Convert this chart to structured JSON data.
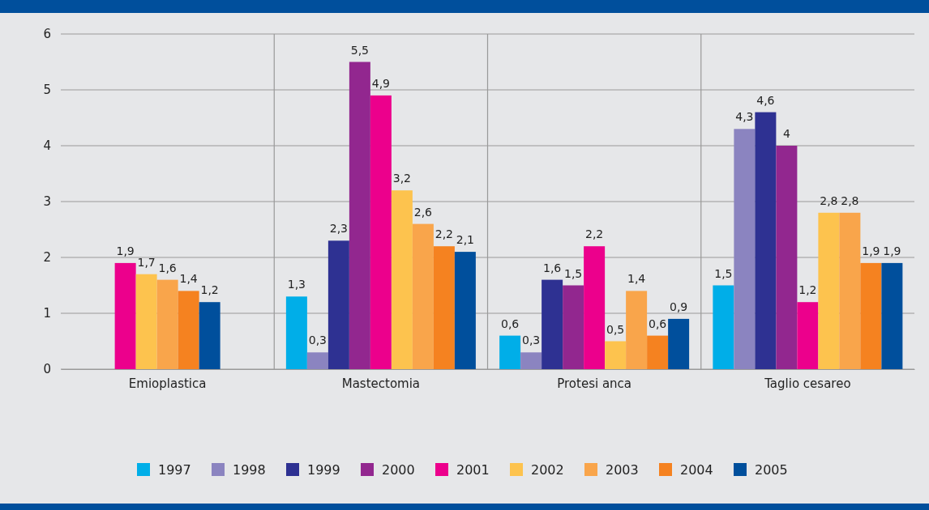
{
  "chart_data": {
    "type": "bar",
    "categories": [
      "Emioplastica",
      "Mastectomia",
      "Protesi anca",
      "Taglio cesareo"
    ],
    "series": [
      {
        "name": "1997",
        "color": "#00aee8",
        "values": [
          null,
          1.3,
          0.6,
          1.5
        ],
        "value_labels": [
          null,
          "1,3",
          "0,6",
          "1,5"
        ]
      },
      {
        "name": "1998",
        "color": "#8b84c0",
        "values": [
          null,
          0.3,
          0.3,
          4.3
        ],
        "value_labels": [
          null,
          "0,3",
          "0,3",
          "4,3"
        ]
      },
      {
        "name": "1999",
        "color": "#2e3192",
        "values": [
          null,
          2.3,
          1.6,
          4.6
        ],
        "value_labels": [
          null,
          "2,3",
          "1,6",
          "4,6"
        ]
      },
      {
        "name": "2000",
        "color": "#92278f",
        "values": [
          null,
          5.5,
          1.5,
          4
        ],
        "value_labels": [
          null,
          "5,5",
          "1,5",
          "4"
        ]
      },
      {
        "name": "2001",
        "color": "#ec008c",
        "values": [
          1.9,
          4.9,
          2.2,
          1.2
        ],
        "value_labels": [
          "1,9",
          "4,9",
          "2,2",
          "1,2"
        ]
      },
      {
        "name": "2002",
        "color": "#fdc34e",
        "values": [
          1.7,
          3.2,
          0.5,
          2.8
        ],
        "value_labels": [
          "1,7",
          "3,2",
          "0,5",
          "2,8"
        ]
      },
      {
        "name": "2003",
        "color": "#f9a54b",
        "values": [
          1.6,
          2.6,
          1.4,
          2.8
        ],
        "value_labels": [
          "1,6",
          "2,6",
          "1,4",
          "2,8"
        ]
      },
      {
        "name": "2004",
        "color": "#f58220",
        "values": [
          1.4,
          2.2,
          0.6,
          1.9
        ],
        "value_labels": [
          "1,4",
          "2,2",
          "0,6",
          "1,9"
        ]
      },
      {
        "name": "2005",
        "color": "#004f9c",
        "values": [
          1.2,
          2.1,
          0.9,
          1.9
        ],
        "value_labels": [
          "1,2",
          "2,1",
          "0,9",
          "1,9"
        ]
      }
    ],
    "ylim": [
      0,
      6
    ],
    "yticks": [
      0,
      1,
      2,
      3,
      4,
      5,
      6
    ],
    "grid": true,
    "legend": "bottom"
  }
}
